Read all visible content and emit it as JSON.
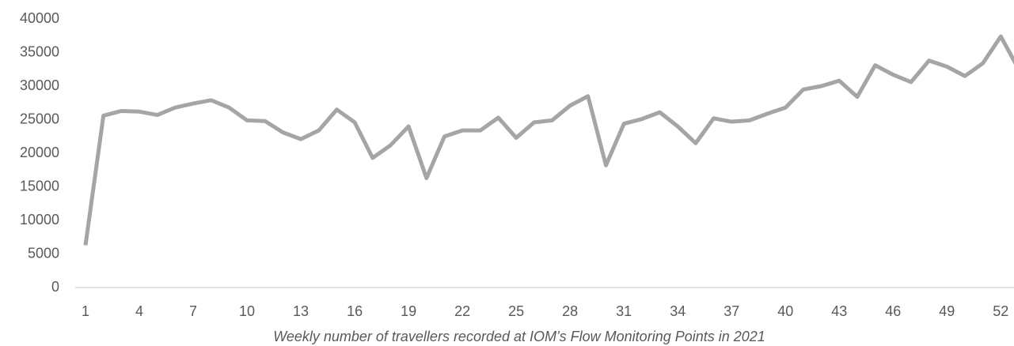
{
  "chart_data": {
    "type": "line",
    "caption": "Weekly number of travellers recorded at IOM’s Flow Monitoring Points in 2021",
    "x": [
      1,
      2,
      3,
      4,
      5,
      6,
      7,
      8,
      9,
      10,
      11,
      12,
      13,
      14,
      15,
      16,
      17,
      18,
      19,
      20,
      21,
      22,
      23,
      24,
      25,
      26,
      27,
      28,
      29,
      30,
      31,
      32,
      33,
      34,
      35,
      36,
      37,
      38,
      39,
      40,
      41,
      42,
      43,
      44,
      45,
      46,
      47,
      48,
      49,
      50,
      51,
      52,
      53
    ],
    "series": [
      {
        "name": "Travellers",
        "color": "#a5a5a5",
        "values": [
          6300,
          25600,
          26300,
          26200,
          25700,
          26800,
          27400,
          27900,
          26800,
          24900,
          24800,
          23100,
          22100,
          23400,
          26500,
          24600,
          19300,
          21200,
          24000,
          16300,
          22500,
          23400,
          23400,
          25300,
          22300,
          24600,
          24900,
          27100,
          28500,
          18200,
          24400,
          25100,
          26100,
          24000,
          21500,
          25200,
          24700,
          24900,
          25900,
          26800,
          29500,
          30000,
          30800,
          28400,
          33100,
          31700,
          30600,
          33800,
          32900,
          31500,
          33400,
          37400,
          32500
        ]
      }
    ],
    "xlim": [
      1,
      53
    ],
    "xticks": [
      1,
      4,
      7,
      10,
      13,
      16,
      19,
      22,
      25,
      28,
      31,
      34,
      37,
      40,
      43,
      46,
      49,
      52
    ],
    "ylim": [
      0,
      40000
    ],
    "yticks": [
      0,
      5000,
      10000,
      15000,
      20000,
      25000,
      30000,
      35000,
      40000
    ],
    "grid": false
  }
}
